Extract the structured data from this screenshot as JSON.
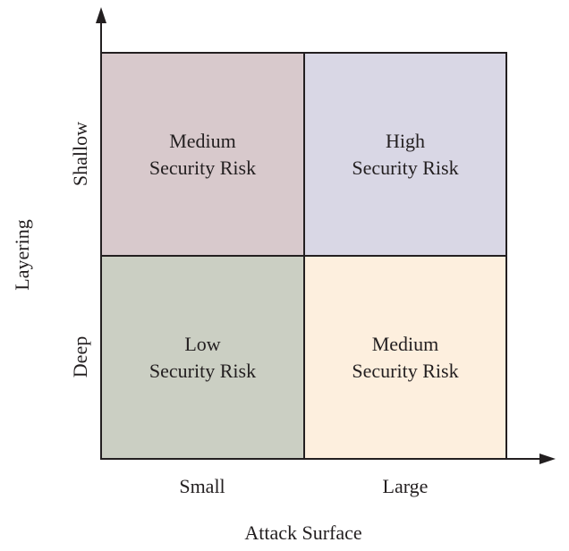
{
  "x_axis": {
    "title": "Attack Surface",
    "ticks": [
      "Small",
      "Large"
    ]
  },
  "y_axis": {
    "title": "Layering",
    "ticks": [
      "Shallow",
      "Deep"
    ]
  },
  "quadrants": {
    "top_left": {
      "line1": "Medium",
      "line2": "Security Risk",
      "color": "#d8c9cc"
    },
    "top_right": {
      "line1": "High",
      "line2": "Security Risk",
      "color": "#d9d7e5"
    },
    "bottom_left": {
      "line1": "Low",
      "line2": "Security Risk",
      "color": "#cbcfc3"
    },
    "bottom_right": {
      "line1": "Medium",
      "line2": "Security Risk",
      "color": "#fdefde"
    }
  }
}
